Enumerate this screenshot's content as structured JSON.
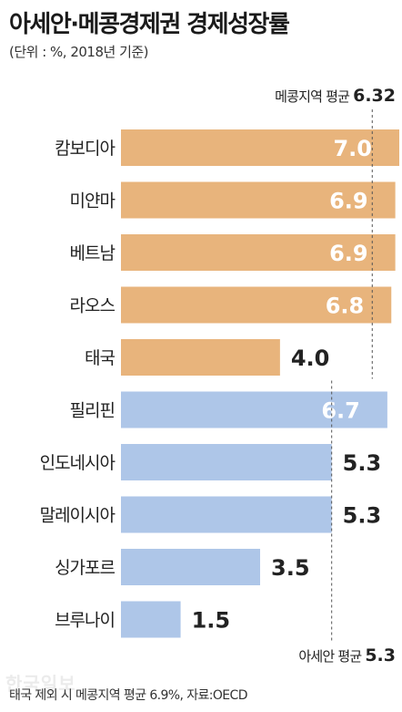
{
  "header": {
    "title": "아세안·메콩경제권 경제성장률",
    "subtitle": "(단위 : %, 2018년 기준)"
  },
  "footer": {
    "source": "태국 제외 시 메콩지역 평균 6.9%, 자료:OECD",
    "watermark": "한국일보"
  },
  "colors": {
    "mekong": "#e8b47c",
    "asean": "#aec6e8",
    "text_dark": "#222222",
    "text_light": "#ffffff",
    "ref_line": "#555555"
  },
  "chart_data": {
    "type": "bar",
    "orientation": "horizontal",
    "categories": [
      "캄보디아",
      "미얀마",
      "베트남",
      "라오스",
      "태국",
      "필리핀",
      "인도네시아",
      "말레이시아",
      "싱가포르",
      "브루나이"
    ],
    "values": [
      7.0,
      6.9,
      6.9,
      6.8,
      4.0,
      6.7,
      5.3,
      5.3,
      3.5,
      1.5
    ],
    "value_labels": [
      "7.0",
      "6.9",
      "6.9",
      "6.8",
      "4.0",
      "6.7",
      "5.3",
      "5.3",
      "3.5",
      "1.5"
    ],
    "groups": [
      "mekong",
      "mekong",
      "mekong",
      "mekong",
      "mekong",
      "asean",
      "asean",
      "asean",
      "asean",
      "asean"
    ],
    "xlim": [
      0,
      7.0
    ],
    "reference_lines": [
      {
        "label": "메콩지역 평균",
        "value": 6.32,
        "value_label": "6.32",
        "group": "mekong",
        "label_position": "top"
      },
      {
        "label": "아세안 평균",
        "value": 5.3,
        "value_label": "5.3",
        "group": "asean",
        "label_position": "bottom"
      }
    ],
    "grid": false,
    "legend": "none"
  }
}
